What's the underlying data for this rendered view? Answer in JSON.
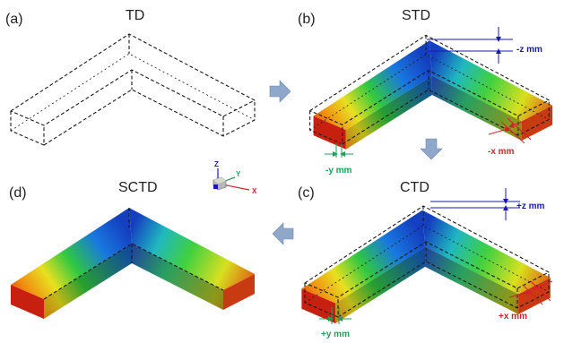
{
  "panels": [
    {
      "label": "(a)",
      "title": "TD"
    },
    {
      "label": "(b)",
      "title": "STD"
    },
    {
      "label": "(c)",
      "title": "CTD"
    },
    {
      "label": "(d)",
      "title": "SCTD"
    }
  ],
  "dimensions": {
    "std_z": "-z mm",
    "std_x": "-x mm",
    "std_y": "-y mm",
    "ctd_z": "+z mm",
    "ctd_x": "+x mm",
    "ctd_y": "+y mm"
  },
  "axes": {
    "z": "Z",
    "y": "Y",
    "x": "X"
  },
  "colors": {
    "z_dim": "#1a1ab0",
    "x_dim": "#d81f2a",
    "y_dim": "#1fa05a",
    "arrow": "#8fa7c8",
    "arrow_dark": "#6d87ad"
  }
}
